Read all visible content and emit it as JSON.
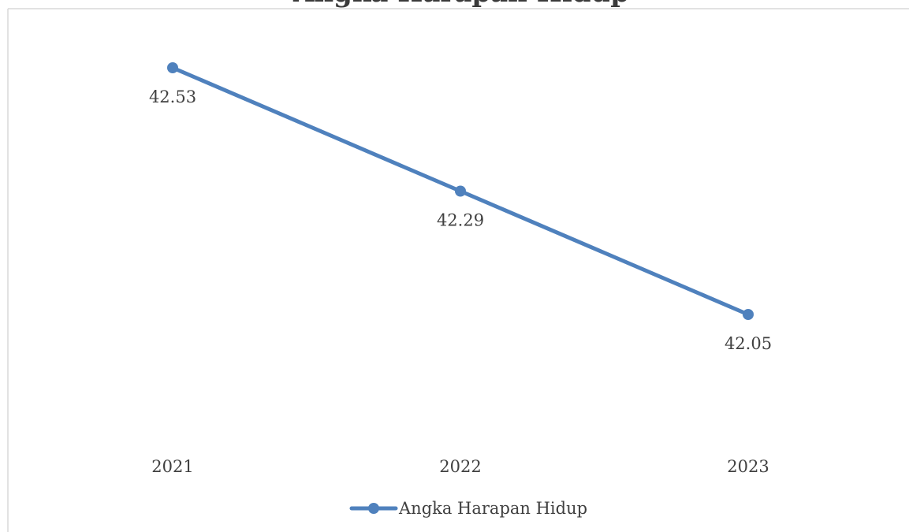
{
  "chart_data": {
    "type": "line",
    "title": "Angka Harapan Hidup",
    "categories": [
      "2021",
      "2022",
      "2023"
    ],
    "series": [
      {
        "name": "Angka Harapan Hidup",
        "values": [
          42.53,
          42.29,
          42.05
        ],
        "color": "#4f81bd"
      }
    ],
    "data_labels": [
      "42.53",
      "42.29",
      "42.05"
    ],
    "ylim": [
      41.8,
      42.6
    ],
    "grid": false,
    "legend_position": "bottom"
  }
}
